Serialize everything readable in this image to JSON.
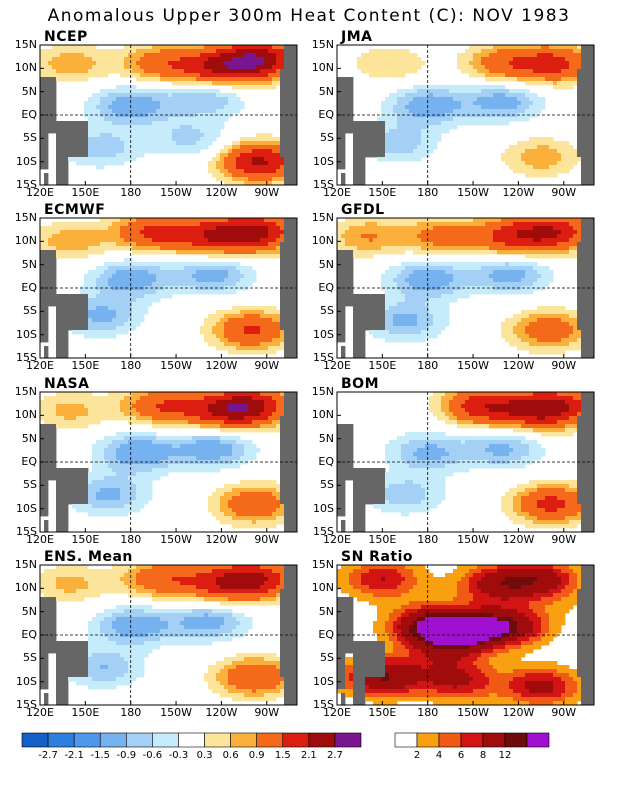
{
  "title": "Anomalous Upper 300m Heat Content (C): NOV 1983",
  "x_ticks": [
    "120E",
    "150E",
    "180",
    "150W",
    "120W",
    "90W"
  ],
  "y_ticks": [
    "15N",
    "10N",
    "5N",
    "EQ",
    "5S",
    "10S",
    "15S"
  ],
  "anomaly_colorbar": {
    "labels": [
      "-2.7",
      "-2.1",
      "-1.5",
      "-0.9",
      "-0.6",
      "-0.3",
      "0.3",
      "0.6",
      "0.9",
      "1.5",
      "2.1",
      "2.7"
    ],
    "colors": [
      "#1560c8",
      "#2e7ee0",
      "#4f98ec",
      "#76b2f0",
      "#a4d0f6",
      "#c6ecfc",
      "#ffffff",
      "#fce49a",
      "#fbb03c",
      "#f46a1a",
      "#dc1e10",
      "#a00c0c",
      "#7a1590"
    ]
  },
  "snr_colorbar": {
    "labels": [
      "2",
      "4",
      "6",
      "8",
      "12"
    ],
    "colors": [
      "#ffffff",
      "#f8a010",
      "#f05a14",
      "#d21414",
      "#a00c0c",
      "#6e0c0c",
      "#a010d0"
    ]
  },
  "chart_data": [
    {
      "type": "heatmap",
      "title": "NCEP",
      "variable": "anomalous upper 300m heat content",
      "unit": "C",
      "x_range": [
        "120E",
        "70W"
      ],
      "y_range": [
        "15S",
        "15N"
      ],
      "grid": "dashed lines at EQ and 180",
      "features": [
        {
          "lon": 200,
          "lat": 11,
          "value": 1.2
        },
        {
          "lon": 237,
          "lat": 10,
          "value": 1.8
        },
        {
          "lon": 265,
          "lat": 12,
          "value": 2.4
        },
        {
          "lon": 140,
          "lat": 11,
          "value": 0.8
        },
        {
          "lon": 265,
          "lat": -10,
          "value": 2.2
        },
        {
          "lon": 180,
          "lat": 2,
          "value": -1.2
        },
        {
          "lon": 230,
          "lat": 4,
          "value": -1.0
        },
        {
          "lon": 160,
          "lat": -7,
          "value": -0.8
        },
        {
          "lon": 220,
          "lat": -5,
          "value": -0.7
        }
      ]
    },
    {
      "type": "heatmap",
      "title": "JMA",
      "variable": "anomalous upper 300m heat content",
      "unit": "C",
      "x_range": [
        "120E",
        "70W"
      ],
      "y_range": [
        "15S",
        "15N"
      ],
      "grid": "dashed lines at EQ and 180",
      "features": [
        {
          "lon": 230,
          "lat": 11,
          "value": 1.2
        },
        {
          "lon": 265,
          "lat": 11,
          "value": 1.6
        },
        {
          "lon": 155,
          "lat": 11,
          "value": 0.6
        },
        {
          "lon": 180,
          "lat": 2,
          "value": -1.2
        },
        {
          "lon": 230,
          "lat": 3,
          "value": -1.1
        },
        {
          "lon": 160,
          "lat": -6,
          "value": -0.8
        },
        {
          "lon": 255,
          "lat": -9,
          "value": 0.8
        }
      ]
    },
    {
      "type": "heatmap",
      "title": "ECMWF",
      "variable": "anomalous upper 300m heat content",
      "unit": "C",
      "x_range": [
        "120E",
        "70W"
      ],
      "y_range": [
        "15S",
        "15N"
      ],
      "grid": "dashed lines at EQ and 180",
      "features": [
        {
          "lon": 195,
          "lat": 12,
          "value": 1.6
        },
        {
          "lon": 235,
          "lat": 11,
          "value": 1.7
        },
        {
          "lon": 265,
          "lat": 12,
          "value": 2.0
        },
        {
          "lon": 140,
          "lat": 10,
          "value": 0.8
        },
        {
          "lon": 180,
          "lat": 2,
          "value": -1.2
        },
        {
          "lon": 235,
          "lat": 3,
          "value": -1.1
        },
        {
          "lon": 160,
          "lat": -6,
          "value": -1.0
        },
        {
          "lon": 260,
          "lat": -9,
          "value": 1.6
        }
      ]
    },
    {
      "type": "heatmap",
      "title": "GFDL",
      "variable": "anomalous upper 300m heat content",
      "unit": "C",
      "x_range": [
        "120E",
        "70W"
      ],
      "y_range": [
        "15S",
        "15N"
      ],
      "grid": "dashed lines at EQ and 180",
      "features": [
        {
          "lon": 190,
          "lat": 11,
          "value": 1.1
        },
        {
          "lon": 235,
          "lat": 11,
          "value": 1.5
        },
        {
          "lon": 265,
          "lat": 12,
          "value": 1.8
        },
        {
          "lon": 140,
          "lat": 11,
          "value": 0.9
        },
        {
          "lon": 180,
          "lat": 2,
          "value": -1.2
        },
        {
          "lon": 235,
          "lat": 3,
          "value": -1.1
        },
        {
          "lon": 165,
          "lat": -7,
          "value": -1.0
        },
        {
          "lon": 260,
          "lat": -9,
          "value": 1.3
        }
      ]
    },
    {
      "type": "heatmap",
      "title": "NASA",
      "variable": "anomalous upper 300m heat content",
      "unit": "C",
      "x_range": [
        "120E",
        "70W"
      ],
      "y_range": [
        "15S",
        "15N"
      ],
      "grid": "dashed lines at EQ and 180",
      "features": [
        {
          "lon": 200,
          "lat": 12,
          "value": 1.4
        },
        {
          "lon": 240,
          "lat": 11,
          "value": 1.6
        },
        {
          "lon": 262,
          "lat": 12,
          "value": 1.8
        },
        {
          "lon": 140,
          "lat": 11,
          "value": 0.7
        },
        {
          "lon": 185,
          "lat": 2,
          "value": -1.3
        },
        {
          "lon": 235,
          "lat": 3,
          "value": -1.2
        },
        {
          "lon": 165,
          "lat": -7,
          "value": -1.0
        },
        {
          "lon": 262,
          "lat": -9,
          "value": 1.4
        }
      ]
    },
    {
      "type": "heatmap",
      "title": "BOM",
      "variable": "anomalous upper 300m heat content",
      "unit": "C",
      "x_range": [
        "120E",
        "70W"
      ],
      "y_range": [
        "15S",
        "15N"
      ],
      "grid": "dashed lines at EQ and 180",
      "features": [
        {
          "lon": 215,
          "lat": 12,
          "value": 1.8
        },
        {
          "lon": 250,
          "lat": 11,
          "value": 1.6
        },
        {
          "lon": 270,
          "lat": 12,
          "value": 1.4
        },
        {
          "lon": 180,
          "lat": 2,
          "value": -1.0
        },
        {
          "lon": 230,
          "lat": 3,
          "value": -1.0
        },
        {
          "lon": 165,
          "lat": -7,
          "value": -0.8
        },
        {
          "lon": 262,
          "lat": -9,
          "value": 1.7
        }
      ]
    },
    {
      "type": "heatmap",
      "title": "ENS. Mean",
      "variable": "anomalous upper 300m heat content",
      "unit": "C",
      "x_range": [
        "120E",
        "70W"
      ],
      "y_range": [
        "15S",
        "15N"
      ],
      "grid": "dashed lines at EQ and 180",
      "features": [
        {
          "lon": 200,
          "lat": 12,
          "value": 1.3
        },
        {
          "lon": 240,
          "lat": 11,
          "value": 1.5
        },
        {
          "lon": 265,
          "lat": 12,
          "value": 1.8
        },
        {
          "lon": 140,
          "lat": 11,
          "value": 0.7
        },
        {
          "lon": 182,
          "lat": 2,
          "value": -1.2
        },
        {
          "lon": 232,
          "lat": 3,
          "value": -1.1
        },
        {
          "lon": 162,
          "lat": -7,
          "value": -0.9
        },
        {
          "lon": 262,
          "lat": -9,
          "value": 1.5
        }
      ]
    },
    {
      "type": "heatmap",
      "title": "SN Ratio",
      "variable": "signal to noise ratio",
      "x_range": [
        "120E",
        "70W"
      ],
      "y_range": [
        "15S",
        "15N"
      ],
      "grid": "dashed lines at EQ and 180",
      "features": [
        {
          "lon": 205,
          "lat": 1,
          "value": 14
        },
        {
          "lon": 180,
          "lat": 2,
          "value": 12
        },
        {
          "lon": 235,
          "lat": 2,
          "value": 10
        },
        {
          "lon": 225,
          "lat": 11,
          "value": 9
        },
        {
          "lon": 150,
          "lat": 12,
          "value": 8
        },
        {
          "lon": 255,
          "lat": 12,
          "value": 9
        },
        {
          "lon": 150,
          "lat": -9,
          "value": 12
        },
        {
          "lon": 200,
          "lat": -10,
          "value": 8
        },
        {
          "lon": 255,
          "lat": -11,
          "value": 9
        },
        {
          "lon": 190,
          "lat": -4,
          "value": 5
        },
        {
          "lon": 275,
          "lat": 7,
          "value": 1
        }
      ]
    }
  ]
}
